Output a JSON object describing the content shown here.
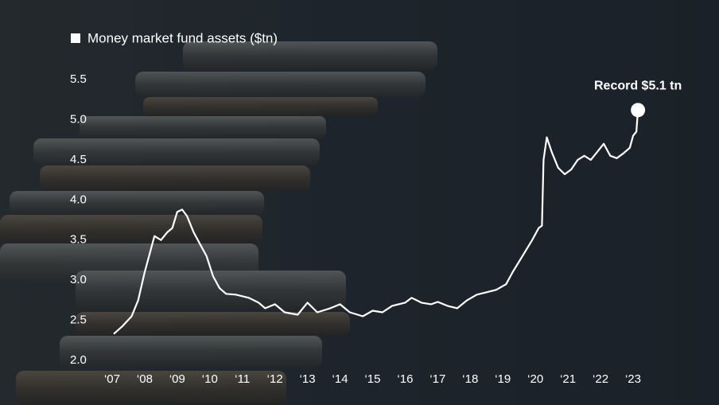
{
  "chart_data": {
    "type": "line",
    "x": [
      2007.05,
      2007.3,
      2007.6,
      2007.8,
      2008.0,
      2008.2,
      2008.3,
      2008.5,
      2008.7,
      2008.85,
      2009.0,
      2009.15,
      2009.3,
      2009.5,
      2009.7,
      2009.9,
      2010.1,
      2010.3,
      2010.5,
      2010.8,
      2011.2,
      2011.5,
      2011.7,
      2012.0,
      2012.3,
      2012.7,
      2013.0,
      2013.3,
      2013.7,
      2014.0,
      2014.3,
      2014.7,
      2015.0,
      2015.3,
      2015.6,
      2016.0,
      2016.2,
      2016.5,
      2016.8,
      2017.0,
      2017.3,
      2017.6,
      2017.9,
      2018.2,
      2018.5,
      2018.8,
      2019.1,
      2019.3,
      2019.6,
      2019.9,
      2020.1,
      2020.2,
      2020.25,
      2020.35,
      2020.5,
      2020.7,
      2020.9,
      2021.1,
      2021.3,
      2021.5,
      2021.7,
      2021.9,
      2022.1,
      2022.3,
      2022.5,
      2022.7,
      2022.9,
      2023.0,
      2023.1,
      2023.15
    ],
    "series": [
      {
        "name": "Money market fund assets ($tn)",
        "color": "#ffffff",
        "values": [
          2.33,
          2.42,
          2.55,
          2.75,
          3.1,
          3.4,
          3.55,
          3.5,
          3.6,
          3.65,
          3.85,
          3.88,
          3.8,
          3.6,
          3.45,
          3.3,
          3.05,
          2.9,
          2.83,
          2.82,
          2.78,
          2.72,
          2.65,
          2.7,
          2.6,
          2.57,
          2.72,
          2.6,
          2.65,
          2.7,
          2.6,
          2.55,
          2.62,
          2.6,
          2.68,
          2.72,
          2.78,
          2.72,
          2.7,
          2.73,
          2.68,
          2.65,
          2.75,
          2.82,
          2.85,
          2.88,
          2.95,
          3.1,
          3.3,
          3.5,
          3.65,
          3.68,
          4.5,
          4.78,
          4.6,
          4.4,
          4.32,
          4.38,
          4.5,
          4.55,
          4.5,
          4.6,
          4.7,
          4.55,
          4.52,
          4.58,
          4.65,
          4.8,
          4.85,
          5.12
        ]
      }
    ],
    "annotation": "Record $5.1 tn",
    "xlim": [
      2006.5,
      2024.5
    ],
    "xticks": [
      {
        "value": 2007,
        "label": "‘07"
      },
      {
        "value": 2008,
        "label": "‘08"
      },
      {
        "value": 2009,
        "label": "‘09"
      },
      {
        "value": 2010,
        "label": "‘10"
      },
      {
        "value": 2011,
        "label": "‘11"
      },
      {
        "value": 2012,
        "label": "‘12"
      },
      {
        "value": 2013,
        "label": "‘13"
      },
      {
        "value": 2014,
        "label": "‘14"
      },
      {
        "value": 2015,
        "label": "‘15"
      },
      {
        "value": 2016,
        "label": "‘16"
      },
      {
        "value": 2017,
        "label": "‘17"
      },
      {
        "value": 2018,
        "label": "‘18"
      },
      {
        "value": 2019,
        "label": "‘19"
      },
      {
        "value": 2020,
        "label": "‘20"
      },
      {
        "value": 2021,
        "label": "‘21"
      },
      {
        "value": 2022,
        "label": "‘22"
      },
      {
        "value": 2023,
        "label": "‘23"
      }
    ],
    "ylim": [
      2,
      5.5
    ],
    "yticks": [
      {
        "value": 2,
        "label": "2.0"
      },
      2.5,
      {
        "value": 3,
        "label": "3.0"
      },
      3.5,
      {
        "value": 4,
        "label": "4.0"
      },
      4.5,
      {
        "value": 5,
        "label": "5.0"
      },
      5.5
    ],
    "grid": false
  }
}
